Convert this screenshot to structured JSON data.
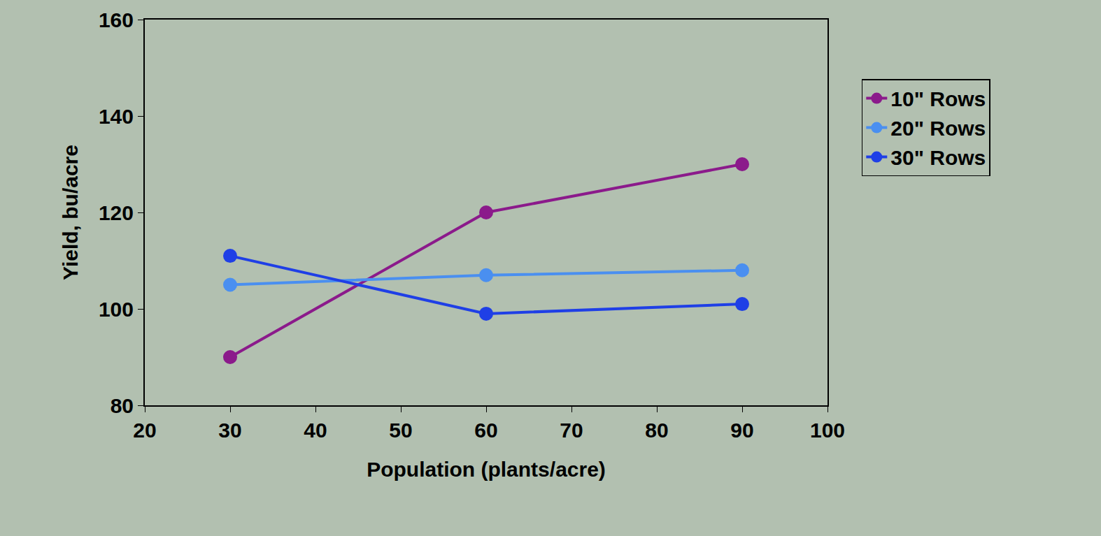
{
  "chart_data": {
    "type": "line",
    "x_label": "Population (plants/acre)",
    "y_label": "Yield, bu/acre",
    "x": [
      30,
      60,
      90
    ],
    "series": [
      {
        "name": "10\" Rows",
        "color": "#8b1a8b",
        "values": [
          90,
          120,
          130
        ],
        "marker": "circle",
        "line_style": "solid"
      },
      {
        "name": "20\" Rows",
        "color": "#4a8ff0",
        "values": [
          105,
          107,
          108
        ],
        "marker": "circle",
        "line_style": "solid"
      },
      {
        "name": "30\" Rows",
        "color": "#1f3fe6",
        "values": [
          111,
          99,
          101
        ],
        "marker": "circle",
        "line_style": "solid"
      }
    ],
    "xlim": [
      20,
      100
    ],
    "xticks": [
      20,
      30,
      40,
      50,
      60,
      70,
      80,
      90,
      100
    ],
    "ylim": [
      80,
      160
    ],
    "yticks": [
      80,
      100,
      120,
      140,
      160
    ],
    "grid": false,
    "legend": "right",
    "data_labels": false
  }
}
